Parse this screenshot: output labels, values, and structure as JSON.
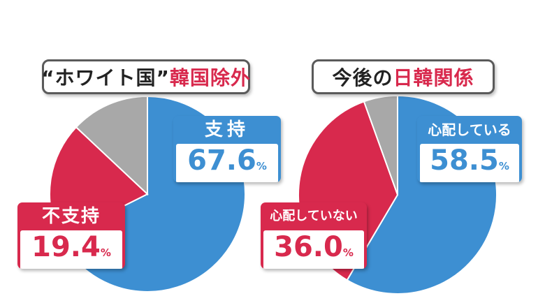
{
  "colors": {
    "blue": "#3d8fd2",
    "red": "#d8294d",
    "gray": "#a8a8a8"
  },
  "left_chart": {
    "title_part1": "“ホワイト国”",
    "title_part2": "韓国除外",
    "support_label": "支持",
    "support_value": "67.6",
    "nosupport_label": "不支持",
    "nosupport_value": "19.4",
    "percent_sign": "%"
  },
  "right_chart": {
    "title_part1": "今後の",
    "title_part2": "日韓関係",
    "worried_label": "心配している",
    "worried_value": "58.5",
    "notworried_label": "心配していない",
    "notworried_value": "36.0",
    "percent_sign": "%"
  },
  "chart_data": [
    {
      "type": "pie",
      "title": "“ホワイト国”韓国除外",
      "categories": [
        "支持",
        "不支持",
        ""
      ],
      "values": [
        67.6,
        19.4,
        13.0
      ],
      "colors": [
        "#3d8fd2",
        "#d8294d",
        "#a8a8a8"
      ]
    },
    {
      "type": "pie",
      "title": "今後の日韓関係",
      "categories": [
        "心配している",
        "心配していない",
        ""
      ],
      "values": [
        58.5,
        36.0,
        5.5
      ],
      "colors": [
        "#3d8fd2",
        "#d8294d",
        "#a8a8a8"
      ]
    }
  ]
}
